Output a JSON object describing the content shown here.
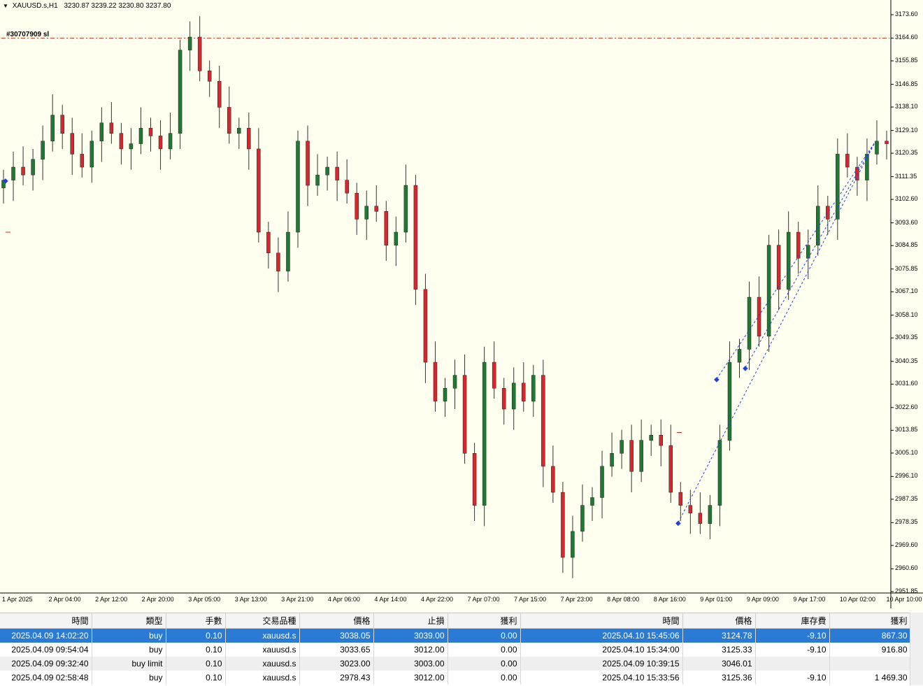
{
  "header": {
    "symbol": "XAUUSD.s,H1",
    "ohlc": "3230.87 3239.22 3230.80 3237.80"
  },
  "order_label": "#30707909 sl",
  "price_axis": [
    "3173.60",
    "3164.60",
    "3155.85",
    "3146.85",
    "3138.10",
    "3129.10",
    "3120.35",
    "3111.35",
    "3102.60",
    "3093.60",
    "3084.85",
    "3075.85",
    "3067.10",
    "3058.10",
    "3049.35",
    "3040.35",
    "3031.60",
    "3022.60",
    "3013.85",
    "3005.10",
    "2996.10",
    "2987.35",
    "2978.35",
    "2969.60",
    "2960.60",
    "2951.85"
  ],
  "time_axis": [
    "1 Apr 2025",
    "2 Apr 04:00",
    "2 Apr 12:00",
    "2 Apr 20:00",
    "3 Apr 05:00",
    "3 Apr 13:00",
    "3 Apr 21:00",
    "4 Apr 06:00",
    "4 Apr 14:00",
    "4 Apr 22:00",
    "7 Apr 07:00",
    "7 Apr 15:00",
    "7 Apr 23:00",
    "8 Apr 08:00",
    "8 Apr 16:00",
    "9 Apr 01:00",
    "9 Apr 09:00",
    "9 Apr 17:00",
    "10 Apr 02:00",
    "10 Apr 10:00"
  ],
  "colors": {
    "background": "#fffff0",
    "bull": "#1e7a32",
    "bear": "#d8262d",
    "sl_line": "#e03a2a",
    "trade_line": "#2040e0",
    "selected_row": "#2a7bd6"
  },
  "chart_data": {
    "type": "candlestick",
    "symbol": "XAUUSD.s",
    "timeframe": "H1",
    "ylim": [
      2951.85,
      3173.6
    ],
    "stop_loss_line": 3164.6,
    "candles_sampled_close": [
      3110,
      3115,
      3112,
      3118,
      3125,
      3135,
      3128,
      3120,
      3115,
      3125,
      3132,
      3128,
      3122,
      3124,
      3130,
      3127,
      3122,
      3128,
      3160,
      3165,
      3152,
      3148,
      3138,
      3128,
      3130,
      3122,
      3090,
      3082,
      3075,
      3090,
      3125,
      3108,
      3112,
      3115,
      3110,
      3105,
      3095,
      3100,
      3098,
      3085,
      3090,
      3108,
      3068,
      3040,
      3025,
      3030,
      3035,
      3005,
      2985,
      3040,
      3030,
      3022,
      3032,
      3025,
      3035,
      3000,
      2990,
      2965,
      2975,
      2985,
      2988,
      3000,
      3005,
      3010,
      2998,
      3010,
      3012,
      3008,
      2990,
      2985,
      2982,
      2978,
      2985,
      3010,
      3040,
      3045,
      3065,
      3050,
      3085,
      3068,
      3090,
      3080,
      3085,
      3100,
      3095,
      3120,
      3115,
      3110,
      3120,
      3125,
      3124
    ],
    "markers": [
      {
        "type": "buy",
        "price": 3038.05
      },
      {
        "type": "buy",
        "price": 3033.65
      },
      {
        "type": "buy limit",
        "price": 3023.0
      },
      {
        "type": "buy",
        "price": 2978.43
      }
    ]
  },
  "table": {
    "columns": [
      "時間",
      "類型",
      "手數",
      "交易品種",
      "價格",
      "止損",
      "獲利",
      "時間",
      "價格",
      "庫存費",
      "獲利"
    ],
    "rows": [
      [
        "2025.04.09 14:02:20",
        "buy",
        "0.10",
        "xauusd.s",
        "3038.05",
        "3039.00",
        "0.00",
        "2025.04.10 15:45:06",
        "3124.78",
        "-9.10",
        "867.30"
      ],
      [
        "2025.04.09 09:54:04",
        "buy",
        "0.10",
        "xauusd.s",
        "3033.65",
        "3012.00",
        "0.00",
        "2025.04.10 15:34:00",
        "3125.33",
        "-9.10",
        "916.80"
      ],
      [
        "2025.04.09 09:32:40",
        "buy limit",
        "0.10",
        "xauusd.s",
        "3023.00",
        "3003.00",
        "0.00",
        "2025.04.09 10:39:15",
        "3046.01",
        "",
        ""
      ],
      [
        "2025.04.09 02:58:48",
        "buy",
        "0.10",
        "xauusd.s",
        "2978.43",
        "3012.00",
        "0.00",
        "2025.04.10 15:33:56",
        "3125.36",
        "-9.10",
        "1 469.30"
      ]
    ]
  }
}
